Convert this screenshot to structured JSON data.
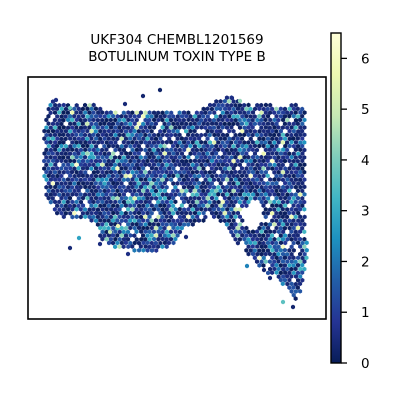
{
  "chart_data": {
    "type": "heatmap",
    "title_lines": [
      "UKF304 CHEMBL1201569",
      "BOTULINUM TOXIN TYPE B"
    ],
    "xlabel": "",
    "ylabel": "",
    "axes_ticks_visible": false,
    "colorbar": {
      "colormap": "YlGnBu",
      "range": [
        0,
        6.5
      ],
      "ticks": [
        0,
        1,
        2,
        3,
        4,
        5,
        6
      ],
      "tick_labels": [
        "0",
        "1",
        "2",
        "3",
        "4",
        "5",
        "6"
      ],
      "colors": [
        "#081d58",
        "#253494",
        "#225ea8",
        "#1d91c0",
        "#41b6c4",
        "#7fcdbb",
        "#c7e9b4",
        "#edf8b1",
        "#ffffd9"
      ]
    },
    "spots": {
      "marker": "hexagon",
      "value_distribution": "mostly 0-1 (dark navy), scattered 2-4 (blue/teal), rare 4-6 (light green/yellow)",
      "sample_values": [
        0,
        0,
        0.5,
        0.8,
        1,
        1.2,
        0,
        0.3,
        2.1,
        0.6,
        3.2,
        0,
        1.4,
        0.9,
        4.1,
        0,
        0.2,
        2.6,
        1.1,
        0,
        5.2
      ]
    },
    "legend": "colorbar-right"
  }
}
